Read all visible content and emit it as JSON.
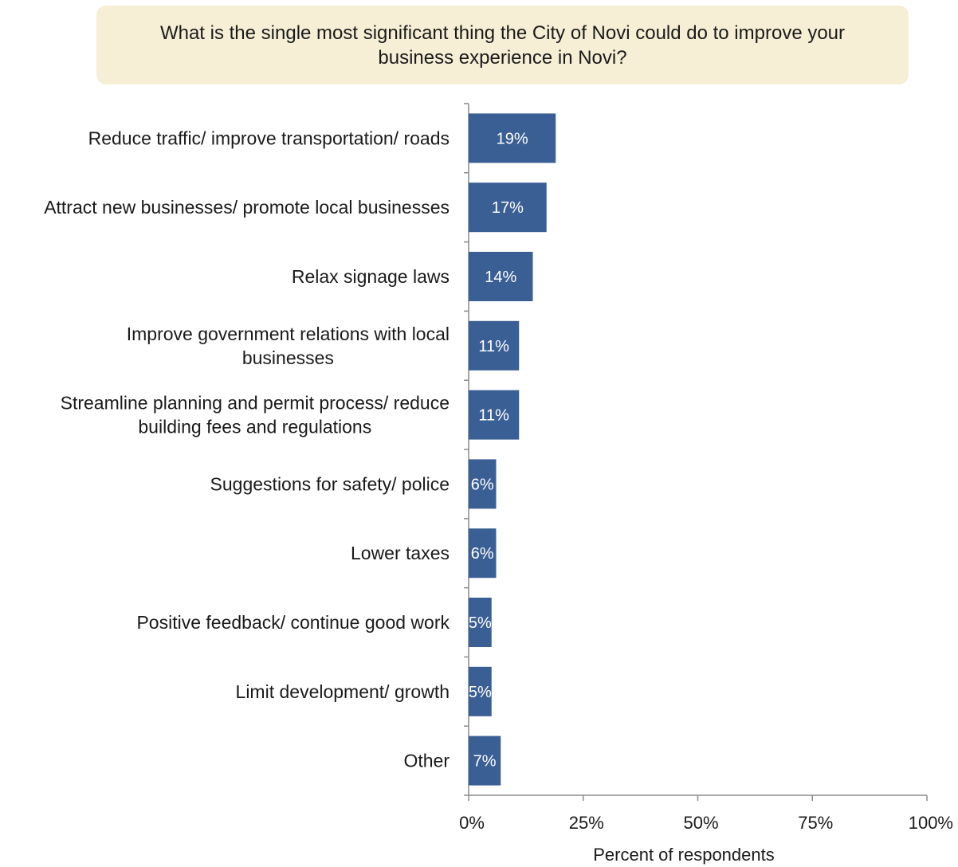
{
  "chart_data": {
    "type": "bar",
    "orientation": "horizontal",
    "title": "What is the single most significant thing the City of Novi could do to improve your business experience in Novi?",
    "xlabel": "Percent of respondents",
    "ylabel": "",
    "xlim": [
      0,
      100
    ],
    "x_ticks": [
      "0%",
      "25%",
      "50%",
      "75%",
      "100%"
    ],
    "x_tick_values": [
      0,
      25,
      50,
      75,
      100
    ],
    "grid": false,
    "legend": "none",
    "bar_color": "#3a5f94",
    "title_background": "#f6efd6",
    "categories": [
      [
        "Reduce traffic/ improve transportation/ roads"
      ],
      [
        "Attract new businesses/ promote local businesses"
      ],
      [
        "Relax signage laws"
      ],
      [
        "Improve government relations with local",
        "businesses"
      ],
      [
        "Streamline planning and permit process/ reduce",
        "building fees and regulations"
      ],
      [
        "Suggestions for safety/ police"
      ],
      [
        "Lower taxes"
      ],
      [
        "Positive feedback/ continue good work"
      ],
      [
        "Limit development/ growth"
      ],
      [
        "Other"
      ]
    ],
    "values": [
      19,
      17,
      14,
      11,
      11,
      6,
      6,
      5,
      5,
      7
    ],
    "value_labels": [
      "19%",
      "17%",
      "14%",
      "11%",
      "11%",
      "6%",
      "6%",
      "5%",
      "5%",
      "7%"
    ]
  }
}
